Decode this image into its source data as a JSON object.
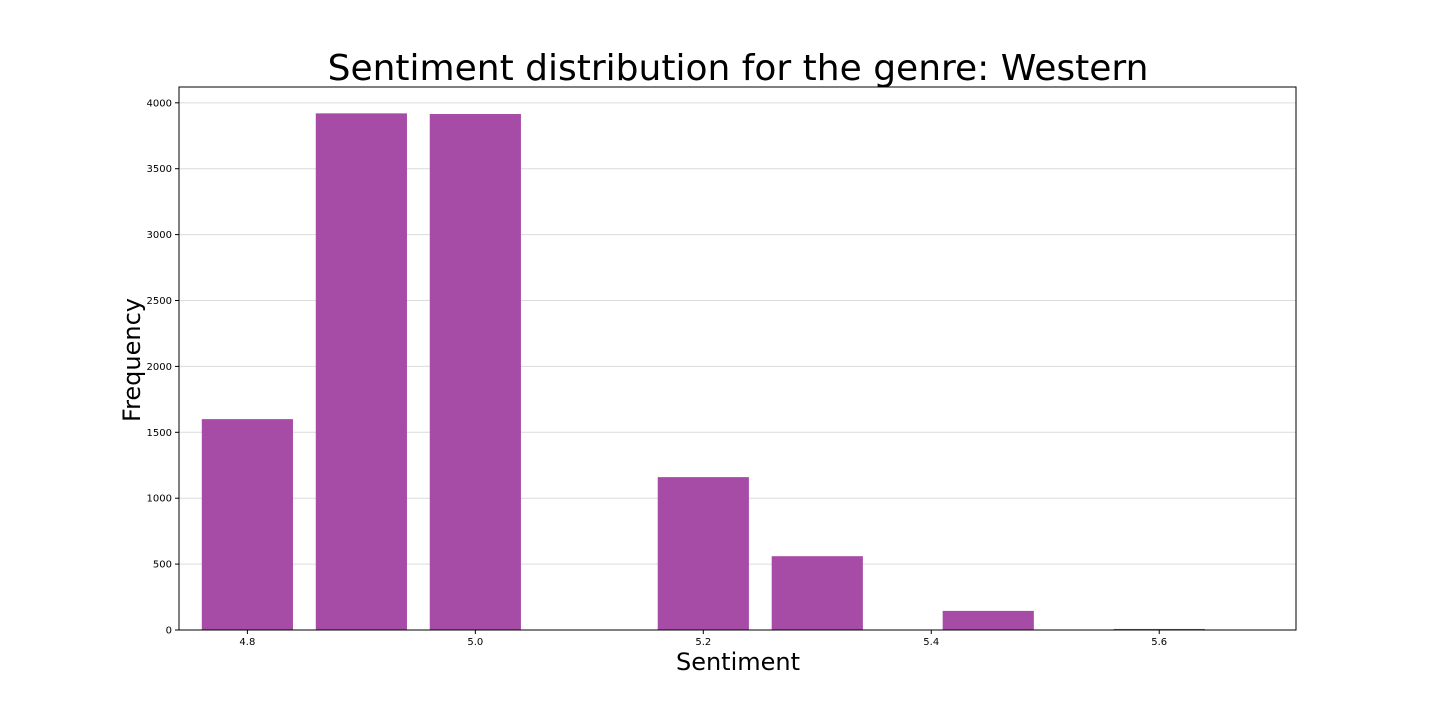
{
  "chart_data": {
    "type": "bar",
    "title": "Sentiment distribution for the genre: Western",
    "xlabel": "Sentiment",
    "ylabel": "Frequency",
    "x": [
      4.8,
      4.9,
      5.0,
      5.2,
      5.3,
      5.45,
      5.6
    ],
    "values": [
      1600,
      3920,
      3915,
      1160,
      560,
      145,
      8
    ],
    "bar_width": 0.08,
    "xlim": [
      4.74,
      5.72
    ],
    "ylim": [
      0,
      4120
    ],
    "xticks": [
      4.8,
      5.0,
      5.2,
      5.4,
      5.6
    ],
    "xtick_labels": [
      "4.8",
      "5.0",
      "5.2",
      "5.4",
      "5.6"
    ],
    "yticks": [
      0,
      500,
      1000,
      1500,
      2000,
      2500,
      3000,
      3500,
      4000
    ],
    "ytick_labels": [
      "0",
      "500",
      "1000",
      "1500",
      "2000",
      "2500",
      "3000",
      "3500",
      "4000"
    ],
    "grid": "horizontal",
    "colors": {
      "bar": "#a64ca6",
      "grid": "#dcdcdc",
      "axes": "#000000"
    }
  }
}
